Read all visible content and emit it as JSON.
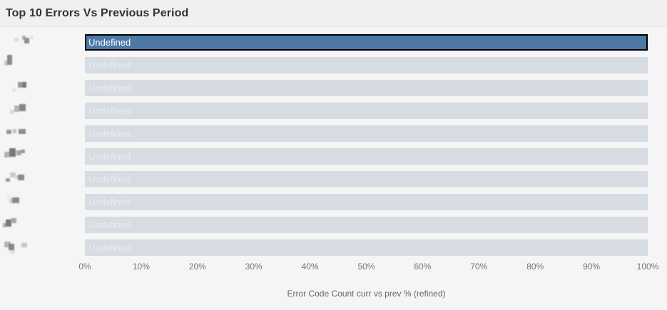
{
  "panel": {
    "title": "Top 10 Errors Vs Previous Period"
  },
  "chart_data": {
    "type": "bar",
    "orientation": "horizontal",
    "title": "Top 10 Errors Vs Previous Period",
    "xlabel": "Error Code Count curr vs prev % (refined)",
    "xlim": [
      0,
      100
    ],
    "x_tick_labels": [
      "0%",
      "10%",
      "20%",
      "30%",
      "40%",
      "50%",
      "60%",
      "70%",
      "80%",
      "90%",
      "100%"
    ],
    "grid": false,
    "legend": "none",
    "categories": [
      "[redacted]",
      "[redacted]",
      "[redacted]",
      "[redacted]",
      "[redacted]",
      "[redacted]",
      "[redacted]",
      "[redacted]",
      "[redacted]",
      "[redacted]"
    ],
    "values": [
      100,
      100,
      100,
      100,
      100,
      100,
      100,
      100,
      100,
      100
    ],
    "bar_labels": [
      "Undefined",
      "Undefined",
      "Undefined",
      "Undefined",
      "Undefined",
      "Undefined",
      "Undefined",
      "Undefined",
      "Undefined",
      "Undefined"
    ],
    "selected_index": 0
  },
  "colors": {
    "selected_bar": "#4d79a7",
    "selected_bar_border": "#000000",
    "selected_bar_text": "#ffffff",
    "bar": "#d6dce2",
    "bar_text": "#e7ecf1",
    "tick_text": "#757575",
    "axis_label_text": "#666666",
    "header_bg": "#f0f0f0",
    "body_bg": "#f5f5f5",
    "title_text": "#333333"
  }
}
